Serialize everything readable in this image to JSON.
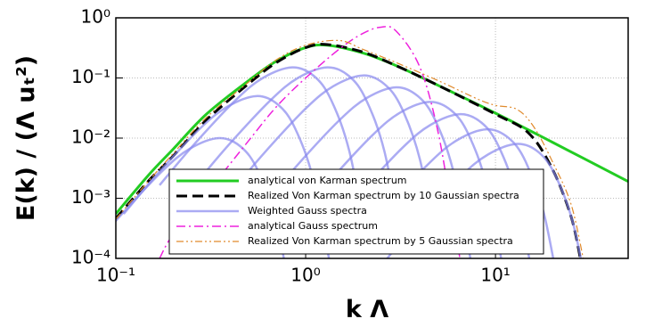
{
  "chart_data": {
    "type": "line",
    "x_label": "k Λ",
    "y_label": "E(k) / (Λ uₜ²)",
    "xlog": true,
    "ylog": true,
    "grid": true,
    "xlim": [
      0.1,
      50
    ],
    "ylim": [
      0.0001,
      1
    ],
    "xticks": [
      {
        "value": 0.1,
        "label": "10⁻¹"
      },
      {
        "value": 1,
        "label": "10⁰"
      },
      {
        "value": 10,
        "label": "10¹"
      }
    ],
    "yticks": [
      {
        "value": 0.0001,
        "label": "10⁻⁴"
      },
      {
        "value": 0.001,
        "label": "10⁻³"
      },
      {
        "value": 0.01,
        "label": "10⁻²"
      },
      {
        "value": 0.1,
        "label": "10⁻¹"
      },
      {
        "value": 1,
        "label": "10⁰"
      }
    ],
    "series": [
      {
        "name": "analytical von Karman spectrum",
        "color": "#22cc22",
        "style": "solid",
        "width": 3,
        "x": [
          0.1,
          0.15,
          0.2,
          0.3,
          0.5,
          0.7,
          1,
          1.3,
          2,
          3,
          5,
          10,
          20,
          50
        ],
        "values": [
          0.00055,
          0.0025,
          0.0065,
          0.025,
          0.09,
          0.19,
          0.32,
          0.35,
          0.26,
          0.16,
          0.075,
          0.026,
          0.0085,
          0.0019
        ]
      },
      {
        "name": "Realized Von Karman spectrum by 10 Gaussian spectra",
        "color": "#000000",
        "style": "dashed",
        "width": 3,
        "x": [
          0.1,
          0.15,
          0.2,
          0.3,
          0.5,
          0.7,
          1,
          1.3,
          2,
          3,
          5,
          10,
          15,
          20,
          25,
          28
        ],
        "values": [
          0.00046,
          0.002,
          0.005,
          0.02,
          0.08,
          0.18,
          0.32,
          0.36,
          0.27,
          0.16,
          0.075,
          0.025,
          0.012,
          0.003,
          0.0005,
          0.0001
        ]
      },
      {
        "name": "Weighted Gauss spectra",
        "color": "#8888ee",
        "style": "solid",
        "width": 2.5,
        "curves": [
          {
            "x": [
              0.07,
              0.105,
              0.175,
              0.245,
              0.35,
              0.455,
              0.56,
              0.7,
              0.875
            ],
            "values": [
              0.00011,
              0.0005,
              0.0028,
              0.00665,
              0.01,
              0.0072,
              0.0029,
              0.0004,
              1.07e-05
            ]
          },
          {
            "x": [
              0.11,
              0.165,
              0.275,
              0.385,
              0.55,
              0.715,
              0.88,
              1.1,
              1.375
            ],
            "values": [
              0.00055,
              0.0025,
              0.014,
              0.033,
              0.05,
              0.036,
              0.0145,
              0.002,
              5.4e-05
            ]
          },
          {
            "x": [
              0.17,
              0.255,
              0.425,
              0.595,
              0.85,
              1.105,
              1.36,
              1.7,
              2.125
            ],
            "values": [
              0.00165,
              0.0075,
              0.042,
              0.1,
              0.15,
              0.108,
              0.0435,
              0.006,
              0.00016
            ]
          },
          {
            "x": [
              0.26,
              0.39,
              0.65,
              0.91,
              1.3,
              1.69,
              2.08,
              2.6,
              3.25
            ],
            "values": [
              0.00165,
              0.0075,
              0.042,
              0.1,
              0.15,
              0.108,
              0.0435,
              0.006,
              0.00016
            ]
          },
          {
            "x": [
              0.4,
              0.6,
              1,
              1.4,
              2,
              2.6,
              3.2,
              4,
              5
            ],
            "values": [
              0.0012,
              0.0055,
              0.031,
              0.073,
              0.11,
              0.079,
              0.032,
              0.0044,
              0.00012
            ]
          },
          {
            "x": [
              0.6,
              0.9,
              1.5,
              2.1,
              3,
              3.9,
              4.8,
              6,
              7.5
            ],
            "values": [
              0.00077,
              0.0035,
              0.0196,
              0.0466,
              0.07,
              0.05,
              0.0203,
              0.0028,
              7.5e-05
            ]
          },
          {
            "x": [
              0.9,
              1.35,
              2.25,
              3.15,
              4.5,
              5.85,
              7.2,
              9,
              11.25
            ],
            "values": [
              0.00044,
              0.002,
              0.0112,
              0.0266,
              0.04,
              0.0288,
              0.0116,
              0.0016,
              4.3e-05
            ]
          },
          {
            "x": [
              1.3,
              1.95,
              3.25,
              4.55,
              6.5,
              8.45,
              10.4,
              13,
              16.25
            ],
            "values": [
              0.000275,
              0.00125,
              0.007,
              0.0166,
              0.025,
              0.018,
              0.00725,
              0.001,
              2.7e-05
            ]
          },
          {
            "x": [
              1.8,
              2.7,
              4.5,
              6.3,
              9,
              11.7,
              14.4,
              18,
              22.5
            ],
            "values": [
              0.00015,
              0.0007,
              0.0039,
              0.0093,
              0.014,
              0.0101,
              0.0041,
              0.00056,
              1.5e-05
            ]
          },
          {
            "x": [
              2.6,
              3.9,
              6.5,
              9.1,
              13,
              16.9,
              20.8,
              26,
              32.5
            ],
            "values": [
              8.8e-05,
              0.0004,
              0.00224,
              0.0053,
              0.008,
              0.0058,
              0.0023,
              0.00032,
              8.6e-06
            ]
          }
        ]
      },
      {
        "name": "analytical Gauss spectrum",
        "color": "#ee22dd",
        "style": "dashdot",
        "width": 1.5,
        "x": [
          0.17,
          0.2,
          0.3,
          0.5,
          0.7,
          1,
          1.5,
          2,
          2.5,
          3,
          4,
          5,
          6,
          6.5
        ],
        "values": [
          0.0001,
          0.00025,
          0.0012,
          0.009,
          0.033,
          0.1,
          0.3,
          0.55,
          0.7,
          0.6,
          0.15,
          0.012,
          0.0004,
          0.0001
        ]
      },
      {
        "name": "Realized Von Karman spectrum by 5 Gaussian spectra",
        "color": "#e08a2c",
        "style": "dashdotdot",
        "width": 1.2,
        "x": [
          0.1,
          0.15,
          0.2,
          0.3,
          0.5,
          0.7,
          1,
          1.5,
          2,
          3,
          5,
          8,
          10,
          13,
          16,
          20,
          25,
          29
        ],
        "values": [
          0.00045,
          0.002,
          0.0055,
          0.022,
          0.085,
          0.2,
          0.35,
          0.42,
          0.3,
          0.18,
          0.09,
          0.045,
          0.035,
          0.03,
          0.015,
          0.004,
          0.0008,
          0.0001
        ]
      }
    ]
  }
}
